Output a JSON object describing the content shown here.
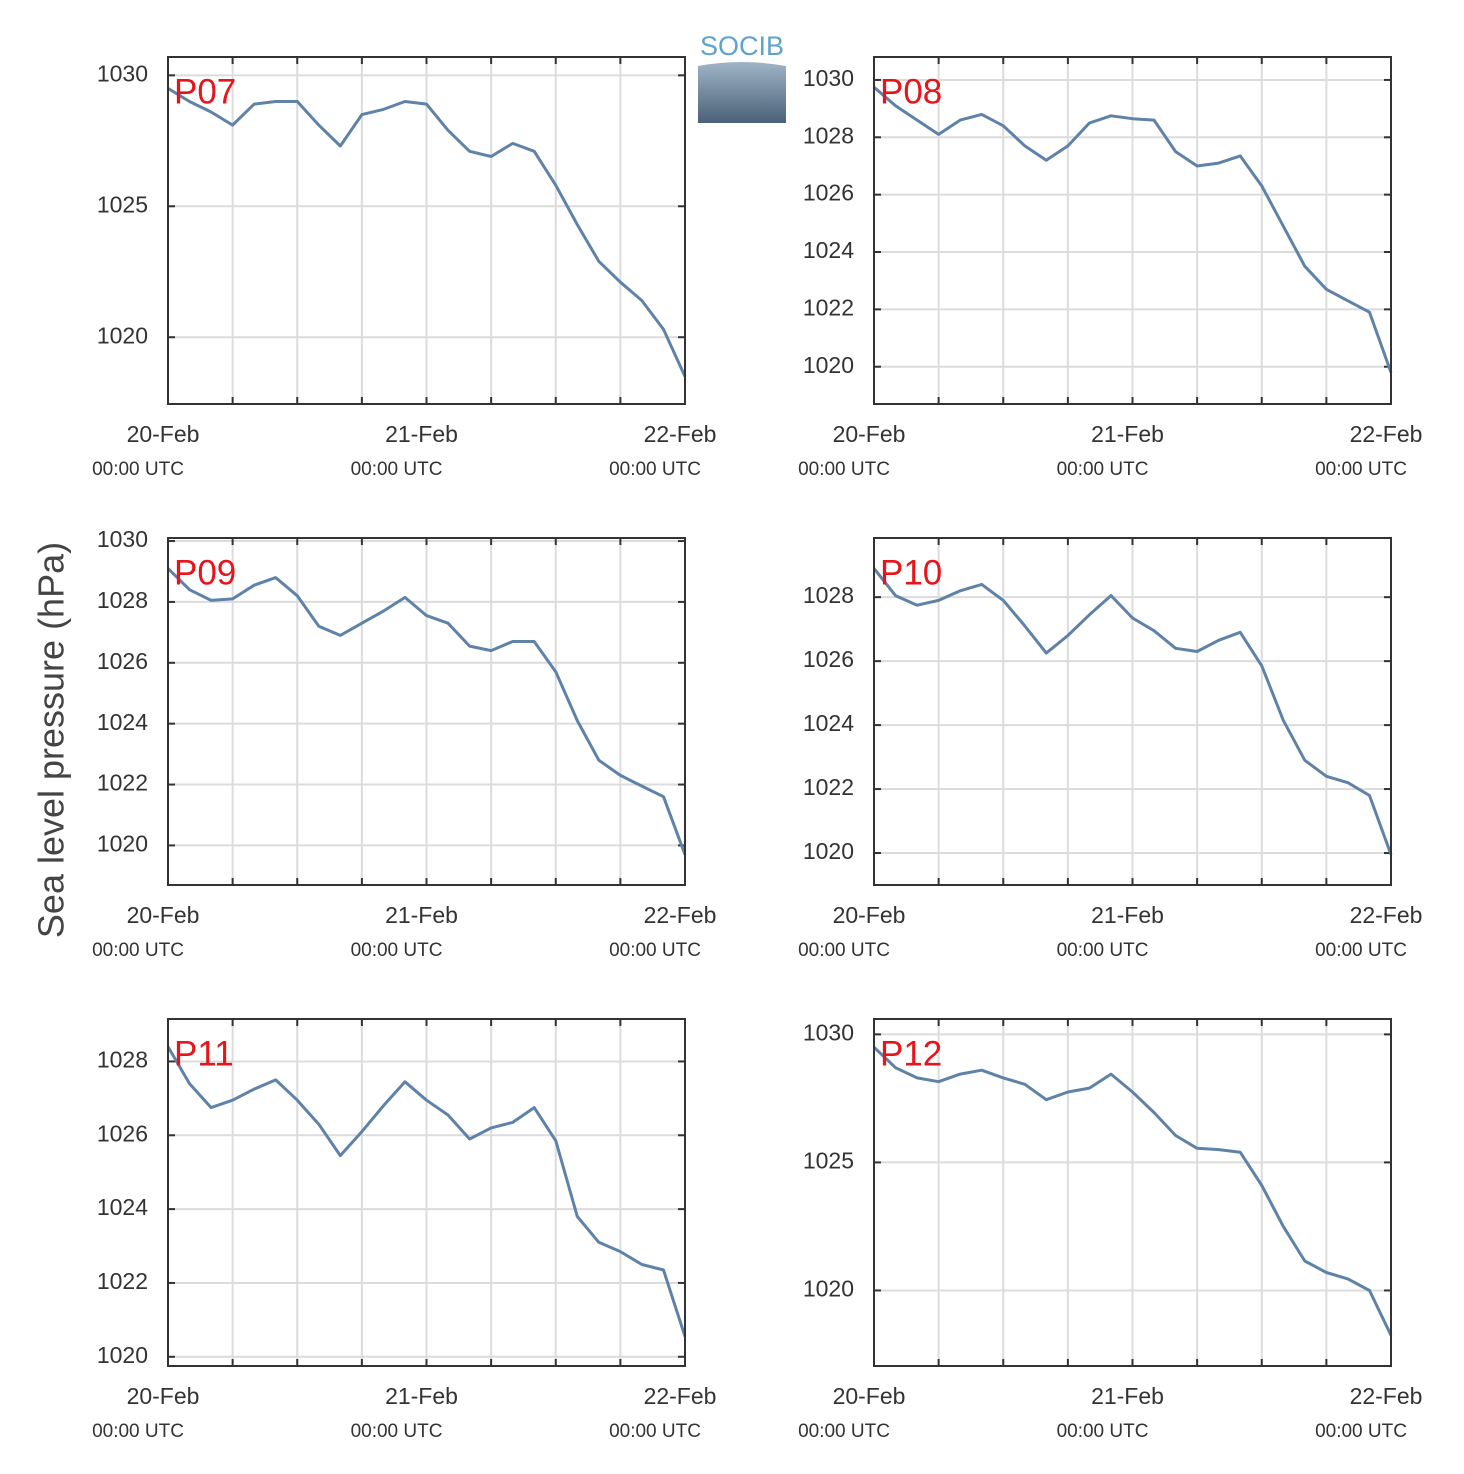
{
  "ylabel": "Sea level pressure (hPa)",
  "logo_text": "SOCIB",
  "chart_data": [
    {
      "type": "line",
      "label": "P07",
      "ylim": [
        1017.45,
        1030.7
      ],
      "yticks": [
        1020,
        1025,
        1030
      ],
      "xlim": [
        0,
        48
      ],
      "xticks": [
        {
          "value": 0,
          "label": "20-Feb",
          "sublabel": "00:00 UTC"
        },
        {
          "value": 24,
          "label": "21-Feb",
          "sublabel": "00:00 UTC"
        },
        {
          "value": 48,
          "label": "22-Feb",
          "sublabel": "00:00 UTC"
        }
      ],
      "xminor_ticks": [
        6,
        12,
        18,
        30,
        36,
        42
      ],
      "grid": true,
      "x": [
        0,
        2,
        4,
        6,
        8,
        10,
        12,
        14,
        16,
        18,
        20,
        22,
        24,
        26,
        28,
        30,
        32,
        34,
        36,
        38,
        40,
        42,
        44,
        46,
        48
      ],
      "series": [
        {
          "color": "#5f82a8",
          "values": [
            1029.5,
            1029.0,
            1028.6,
            1028.1,
            1028.9,
            1029.0,
            1029.0,
            1028.1,
            1027.3,
            1028.5,
            1028.7,
            1029.0,
            1028.9,
            1027.9,
            1027.1,
            1026.9,
            1027.4,
            1027.1,
            1025.8,
            1024.3,
            1022.9,
            1022.1,
            1021.4,
            1020.3,
            1018.5
          ]
        }
      ]
    },
    {
      "type": "line",
      "label": "P08",
      "ylim": [
        1018.7,
        1030.8
      ],
      "yticks": [
        1020,
        1022,
        1024,
        1026,
        1028,
        1030
      ],
      "xlim": [
        0,
        48
      ],
      "xticks": [
        {
          "value": 0,
          "label": "20-Feb",
          "sublabel": "00:00 UTC"
        },
        {
          "value": 24,
          "label": "21-Feb",
          "sublabel": "00:00 UTC"
        },
        {
          "value": 48,
          "label": "22-Feb",
          "sublabel": "00:00 UTC"
        }
      ],
      "xminor_ticks": [
        6,
        12,
        18,
        30,
        36,
        42
      ],
      "grid": true,
      "x": [
        0,
        2,
        4,
        6,
        8,
        10,
        12,
        14,
        16,
        18,
        20,
        22,
        24,
        26,
        28,
        30,
        32,
        34,
        36,
        38,
        40,
        42,
        44,
        46,
        48
      ],
      "series": [
        {
          "color": "#5f82a8",
          "values": [
            1029.75,
            1029.1,
            1028.6,
            1028.1,
            1028.6,
            1028.8,
            1028.4,
            1027.7,
            1027.2,
            1027.7,
            1028.5,
            1028.75,
            1028.65,
            1028.6,
            1027.5,
            1027.0,
            1027.1,
            1027.35,
            1026.3,
            1024.9,
            1023.5,
            1022.7,
            1022.3,
            1021.9,
            1019.8
          ]
        }
      ]
    },
    {
      "type": "line",
      "label": "P09",
      "ylim": [
        1018.7,
        1030.1
      ],
      "yticks": [
        1020,
        1022,
        1024,
        1026,
        1028,
        1030
      ],
      "xlim": [
        0,
        48
      ],
      "xticks": [
        {
          "value": 0,
          "label": "20-Feb",
          "sublabel": "00:00 UTC"
        },
        {
          "value": 24,
          "label": "21-Feb",
          "sublabel": "00:00 UTC"
        },
        {
          "value": 48,
          "label": "22-Feb",
          "sublabel": "00:00 UTC"
        }
      ],
      "xminor_ticks": [
        6,
        12,
        18,
        30,
        36,
        42
      ],
      "grid": true,
      "x": [
        0,
        2,
        4,
        6,
        8,
        10,
        12,
        14,
        16,
        18,
        20,
        22,
        24,
        26,
        28,
        30,
        32,
        34,
        36,
        38,
        40,
        42,
        44,
        46,
        48
      ],
      "series": [
        {
          "color": "#5f82a8",
          "values": [
            1029.1,
            1028.4,
            1028.05,
            1028.1,
            1028.55,
            1028.8,
            1028.2,
            1027.2,
            1026.9,
            1027.3,
            1027.7,
            1028.15,
            1027.55,
            1027.3,
            1026.55,
            1026.4,
            1026.7,
            1026.7,
            1025.7,
            1024.1,
            1022.8,
            1022.3,
            1021.95,
            1021.6,
            1019.7
          ]
        }
      ]
    },
    {
      "type": "line",
      "label": "P10",
      "ylim": [
        1019.0,
        1029.85
      ],
      "yticks": [
        1020,
        1022,
        1024,
        1026,
        1028
      ],
      "xlim": [
        0,
        48
      ],
      "xticks": [
        {
          "value": 0,
          "label": "20-Feb",
          "sublabel": "00:00 UTC"
        },
        {
          "value": 24,
          "label": "21-Feb",
          "sublabel": "00:00 UTC"
        },
        {
          "value": 48,
          "label": "22-Feb",
          "sublabel": "00:00 UTC"
        }
      ],
      "xminor_ticks": [
        6,
        12,
        18,
        30,
        36,
        42
      ],
      "grid": true,
      "x": [
        0,
        2,
        4,
        6,
        8,
        10,
        12,
        14,
        16,
        18,
        20,
        22,
        24,
        26,
        28,
        30,
        32,
        34,
        36,
        38,
        40,
        42,
        44,
        46,
        48
      ],
      "series": [
        {
          "color": "#5f82a8",
          "values": [
            1028.9,
            1028.05,
            1027.75,
            1027.9,
            1028.2,
            1028.4,
            1027.9,
            1027.1,
            1026.25,
            1026.8,
            1027.45,
            1028.05,
            1027.35,
            1026.95,
            1026.4,
            1026.3,
            1026.65,
            1026.9,
            1025.85,
            1024.15,
            1022.9,
            1022.4,
            1022.2,
            1021.8,
            1019.95
          ]
        }
      ]
    },
    {
      "type": "line",
      "label": "P11",
      "ylim": [
        1019.75,
        1029.15
      ],
      "yticks": [
        1020,
        1022,
        1024,
        1026,
        1028
      ],
      "xlim": [
        0,
        48
      ],
      "xticks": [
        {
          "value": 0,
          "label": "20-Feb",
          "sublabel": "00:00 UTC"
        },
        {
          "value": 24,
          "label": "21-Feb",
          "sublabel": "00:00 UTC"
        },
        {
          "value": 48,
          "label": "22-Feb",
          "sublabel": "00:00 UTC"
        }
      ],
      "xminor_ticks": [
        6,
        12,
        18,
        30,
        36,
        42
      ],
      "grid": true,
      "x": [
        0,
        2,
        4,
        6,
        8,
        10,
        12,
        14,
        16,
        18,
        20,
        22,
        24,
        26,
        28,
        30,
        32,
        34,
        36,
        38,
        40,
        42,
        44,
        46,
        48
      ],
      "series": [
        {
          "color": "#5f82a8",
          "values": [
            1028.4,
            1027.4,
            1026.75,
            1026.95,
            1027.25,
            1027.5,
            1026.95,
            1026.3,
            1025.45,
            1026.1,
            1026.8,
            1027.45,
            1026.95,
            1026.55,
            1025.9,
            1026.2,
            1026.35,
            1026.75,
            1025.85,
            1023.8,
            1023.1,
            1022.85,
            1022.5,
            1022.35,
            1020.55
          ]
        }
      ]
    },
    {
      "type": "line",
      "label": "P12",
      "ylim": [
        1017.05,
        1030.6
      ],
      "yticks": [
        1020,
        1025,
        1030
      ],
      "xlim": [
        0,
        48
      ],
      "xticks": [
        {
          "value": 0,
          "label": "20-Feb",
          "sublabel": "00:00 UTC"
        },
        {
          "value": 24,
          "label": "21-Feb",
          "sublabel": "00:00 UTC"
        },
        {
          "value": 48,
          "label": "22-Feb",
          "sublabel": "00:00 UTC"
        }
      ],
      "xminor_ticks": [
        6,
        12,
        18,
        30,
        36,
        42
      ],
      "grid": true,
      "x": [
        0,
        2,
        4,
        6,
        8,
        10,
        12,
        14,
        16,
        18,
        20,
        22,
        24,
        26,
        28,
        30,
        32,
        34,
        36,
        38,
        40,
        42,
        44,
        46,
        48
      ],
      "series": [
        {
          "color": "#5f82a8",
          "values": [
            1029.5,
            1028.7,
            1028.3,
            1028.15,
            1028.45,
            1028.6,
            1028.3,
            1028.05,
            1027.45,
            1027.75,
            1027.9,
            1028.45,
            1027.75,
            1026.95,
            1026.05,
            1025.55,
            1025.5,
            1025.4,
            1024.1,
            1022.5,
            1021.15,
            1020.7,
            1020.45,
            1020.0,
            1018.25
          ]
        }
      ]
    }
  ]
}
